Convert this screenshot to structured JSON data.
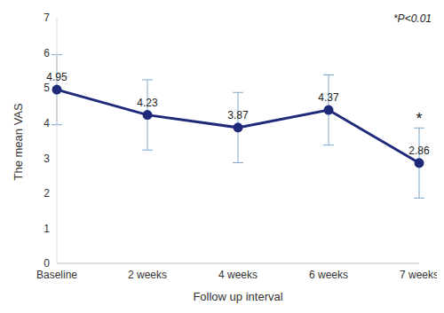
{
  "chart_data": {
    "type": "line",
    "categories": [
      "Baseline",
      "2 weeks",
      "4 weeks",
      "6 weeks",
      "7 weeks"
    ],
    "series": [
      {
        "name": "The mean VAS",
        "color": "#1f2a7a",
        "values": [
          4.95,
          4.23,
          3.87,
          4.37,
          2.86
        ],
        "errors": [
          1.0,
          1.0,
          1.0,
          1.0,
          1.0
        ],
        "marker": "circle",
        "line_style": "solid"
      }
    ],
    "x_label": "Follow up interval",
    "y_label": "The mean VAS",
    "ylim": [
      0,
      7
    ],
    "yticks": [
      0,
      1,
      2,
      3,
      4,
      5,
      6,
      7
    ],
    "grid": false,
    "data_labels": true,
    "annotations": [
      {
        "text": "*P<0.01"
      },
      {
        "text": "*",
        "category": "7 weeks"
      }
    ]
  }
}
